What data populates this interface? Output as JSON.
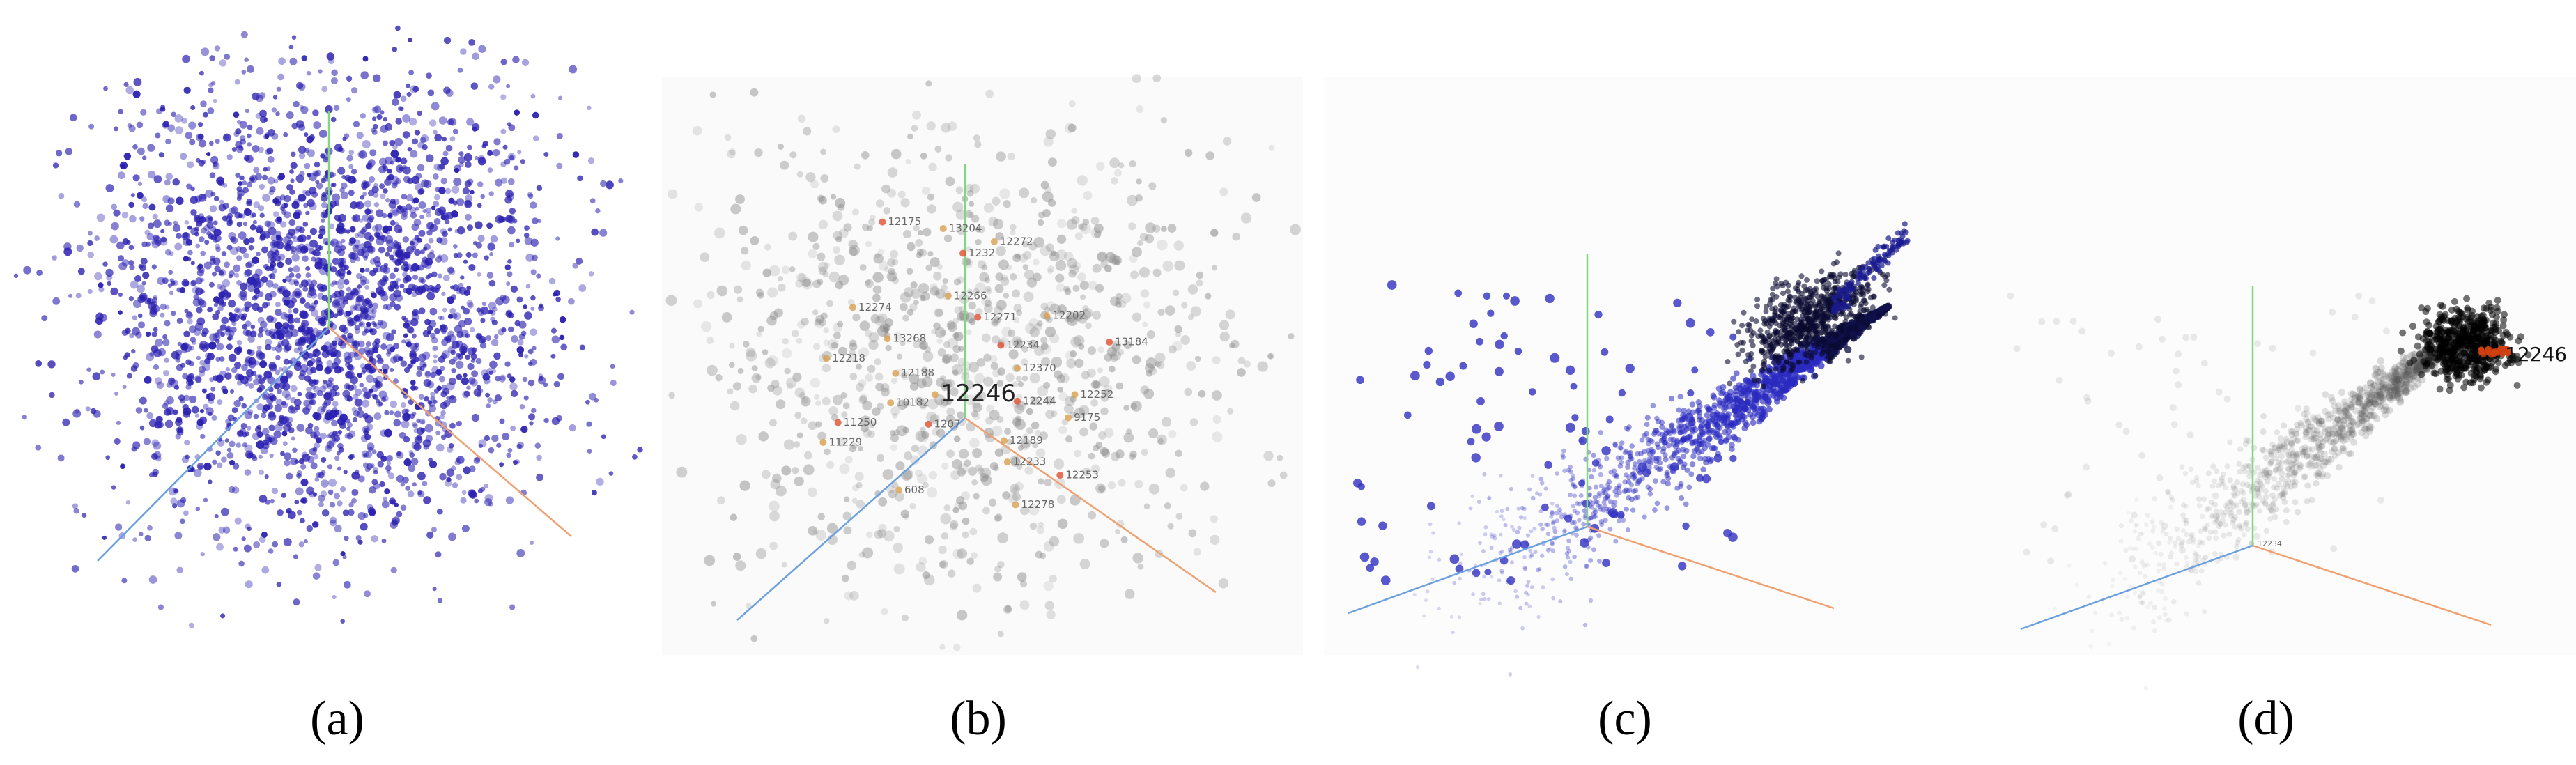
{
  "panels": [
    {
      "caption": "(a)"
    },
    {
      "caption": "(b)",
      "labels": [
        "12175",
        "13204",
        "12272",
        "1232",
        "12274",
        "12266",
        "12271",
        "12202",
        "13268",
        "13184",
        "12218",
        "12188",
        "12234",
        "12370",
        "12246",
        "12244",
        "12252",
        "10182",
        "11250",
        "9175",
        "11229",
        "1207",
        "12189",
        "12233",
        "12253",
        "608",
        "12278"
      ]
    },
    {
      "caption": "(c)"
    },
    {
      "caption": "(d)",
      "labels": [
        "12246",
        "12234"
      ]
    }
  ]
}
